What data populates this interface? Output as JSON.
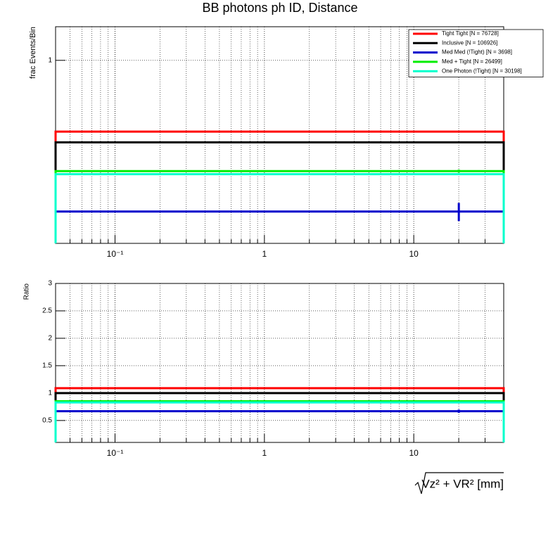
{
  "chart_data": [
    {
      "type": "histogram",
      "title": "BB photons ph ID, Distance",
      "ylabel": "frac Events/Bin",
      "xscale": "log",
      "yscale": "log",
      "grid": true,
      "legend": "upper right",
      "xlim": [
        0.04,
        40
      ],
      "xticks": [
        {
          "value": 0.1,
          "label": "10⁻¹"
        },
        1,
        10
      ],
      "ylim": [
        0.16,
        1.4
      ],
      "yticks": [
        1
      ],
      "bins": [
        0.04,
        40
      ],
      "series": [
        {
          "name": "Tight Tight [N = 76728]",
          "color": "#ff0000",
          "values": [
            0.49
          ]
        },
        {
          "name": "Inclusive [N = 106926]",
          "color": "#000000",
          "values": [
            0.44
          ]
        },
        {
          "name": "Med Med (!Tight) [N = 3698]",
          "color": "#0000cc",
          "values": [
            0.22
          ],
          "errors": [
            0.02
          ]
        },
        {
          "name": "Med + Tight [N = 26499]",
          "color": "#00ee00",
          "values": [
            0.33
          ],
          "errors": [
            0.005
          ]
        },
        {
          "name": "One Photon (!Tight) [N = 30198]",
          "color": "#00ffcc",
          "values": [
            0.32
          ]
        }
      ]
    },
    {
      "type": "histogram",
      "ylabel": "Ratio",
      "xlabel": "Vz² + VR² [mm]",
      "xscale": "log",
      "grid": true,
      "xlim": [
        0.04,
        40
      ],
      "xticks": [
        {
          "value": 0.1,
          "label": "10⁻¹"
        },
        1,
        10
      ],
      "ylim": [
        0.1,
        3
      ],
      "yticks": [
        0.5,
        1,
        1.5,
        2,
        2.5,
        3
      ],
      "bins": [
        0.04,
        40
      ],
      "series": [
        {
          "color": "#ff0000",
          "values": [
            1.09
          ]
        },
        {
          "color": "#000000",
          "values": [
            1.0
          ]
        },
        {
          "color": "#0000cc",
          "values": [
            0.67
          ],
          "errors": [
            0.03
          ]
        },
        {
          "color": "#00ee00",
          "values": [
            0.85
          ]
        },
        {
          "color": "#00ffcc",
          "values": [
            0.83
          ]
        }
      ]
    }
  ]
}
